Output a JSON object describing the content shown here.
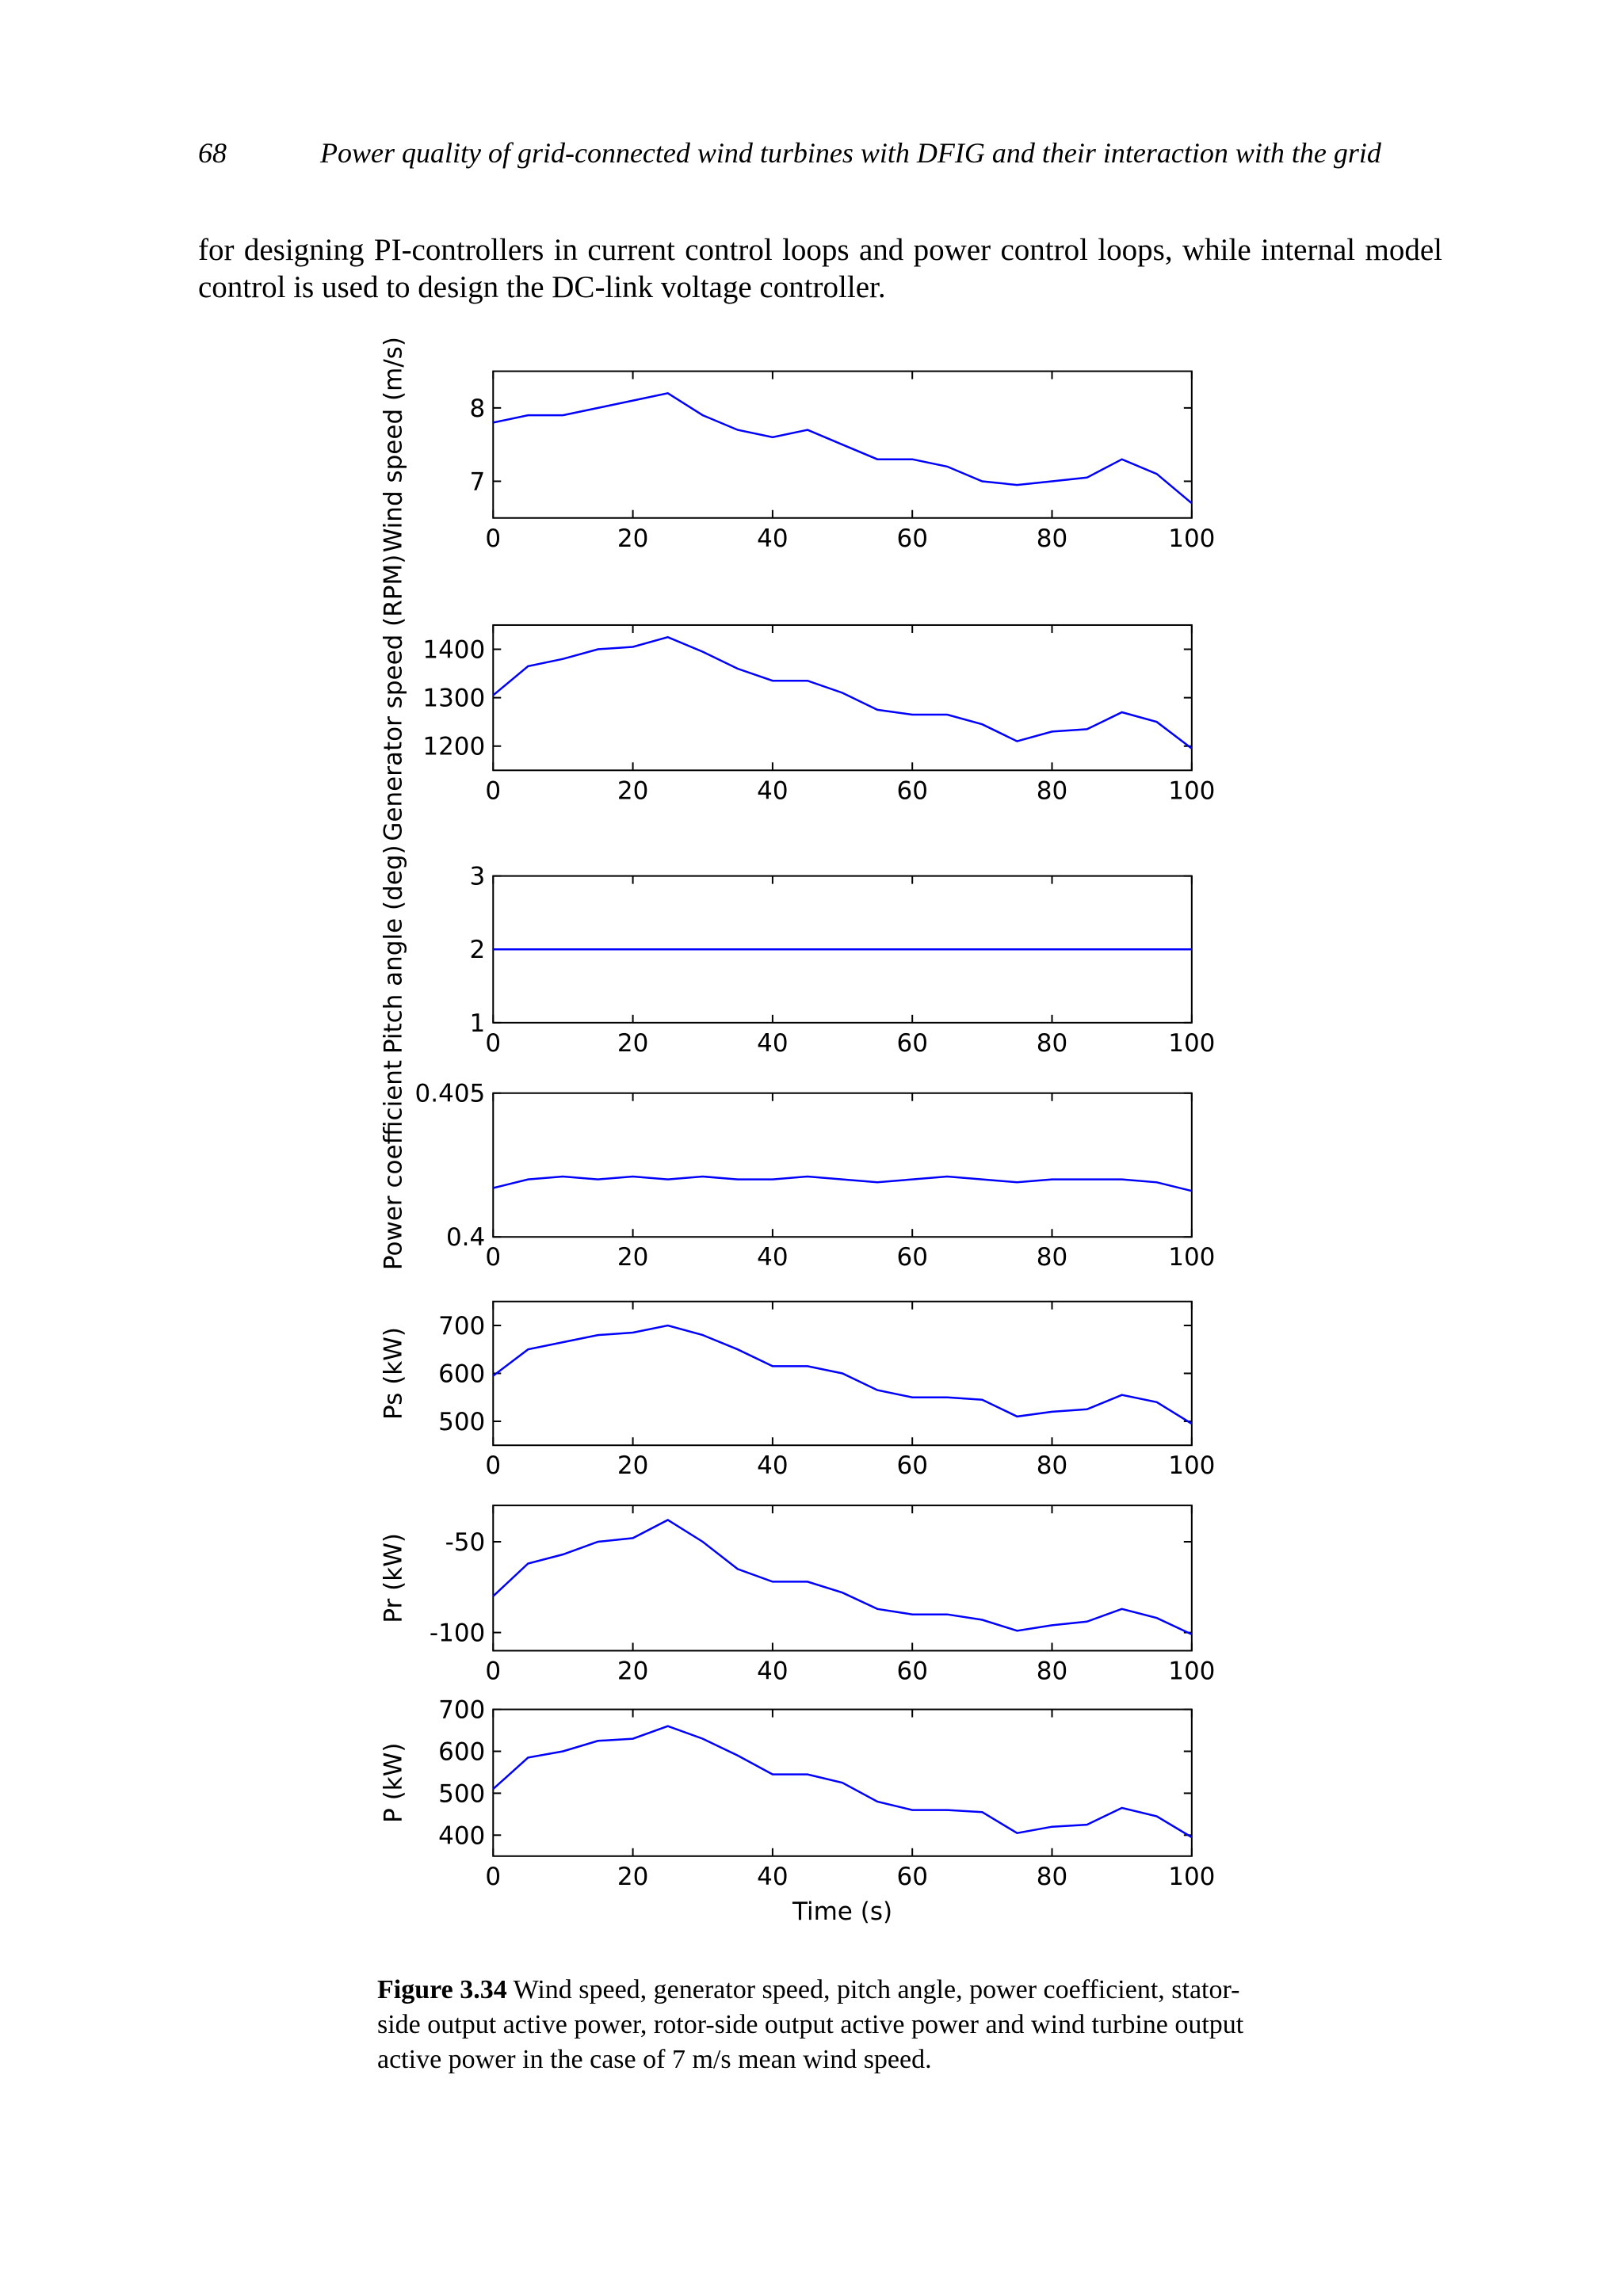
{
  "page_header": {
    "number": "68",
    "title": "Power quality of grid-connected wind turbines with DFIG and their interaction with the grid"
  },
  "body_text": "for designing PI-controllers in current control loops and power control loops, while internal model control is used to design the DC-link voltage controller.",
  "caption": {
    "label": "Figure 3.34",
    "text": "Wind speed, generator speed, pitch angle, power coefficient, stator-side output active power, rotor-side output active power and wind turbine output active power in the case of 7 m/s mean wind speed."
  },
  "chart_data": [
    {
      "type": "line",
      "ylabel": "Wind speed (m/s)",
      "color": "#0000ff",
      "x": [
        0,
        5,
        10,
        15,
        20,
        25,
        30,
        35,
        40,
        45,
        50,
        55,
        60,
        65,
        70,
        75,
        80,
        85,
        90,
        95,
        100
      ],
      "values": [
        7.8,
        7.9,
        7.9,
        8.0,
        8.1,
        8.2,
        7.9,
        7.7,
        7.6,
        7.7,
        7.5,
        7.3,
        7.3,
        7.2,
        7.0,
        6.95,
        7.0,
        7.05,
        7.3,
        7.1,
        6.7
      ],
      "xlim": [
        0,
        100
      ],
      "xticks": [
        0,
        20,
        40,
        60,
        80,
        100
      ],
      "ylim": [
        6.5,
        8.5
      ],
      "yticks": [
        7,
        8
      ]
    },
    {
      "type": "line",
      "ylabel": "Generator speed (RPM)",
      "color": "#0000ff",
      "x": [
        0,
        5,
        10,
        15,
        20,
        25,
        30,
        35,
        40,
        45,
        50,
        55,
        60,
        65,
        70,
        75,
        80,
        85,
        90,
        95,
        100
      ],
      "values": [
        1305,
        1365,
        1380,
        1400,
        1405,
        1425,
        1395,
        1360,
        1335,
        1335,
        1310,
        1275,
        1265,
        1265,
        1245,
        1210,
        1230,
        1235,
        1270,
        1250,
        1195
      ],
      "xlim": [
        0,
        100
      ],
      "xticks": [
        0,
        20,
        40,
        60,
        80,
        100
      ],
      "ylim": [
        1150,
        1450
      ],
      "yticks": [
        1200,
        1300,
        1400
      ]
    },
    {
      "type": "line",
      "ylabel": "Pitch angle (deg)",
      "color": "#0000ff",
      "x": [
        0,
        5,
        10,
        15,
        20,
        25,
        30,
        35,
        40,
        45,
        50,
        55,
        60,
        65,
        70,
        75,
        80,
        85,
        90,
        95,
        100
      ],
      "values": [
        2,
        2,
        2,
        2,
        2,
        2,
        2,
        2,
        2,
        2,
        2,
        2,
        2,
        2,
        2,
        2,
        2,
        2,
        2,
        2,
        2
      ],
      "xlim": [
        0,
        100
      ],
      "xticks": [
        0,
        20,
        40,
        60,
        80,
        100
      ],
      "ylim": [
        1,
        3
      ],
      "yticks": [
        1,
        2,
        3
      ]
    },
    {
      "type": "line",
      "ylabel": "Power coefficient",
      "color": "#0000ff",
      "x": [
        0,
        5,
        10,
        15,
        20,
        25,
        30,
        35,
        40,
        45,
        50,
        55,
        60,
        65,
        70,
        75,
        80,
        85,
        90,
        95,
        100
      ],
      "values": [
        0.4017,
        0.402,
        0.4021,
        0.402,
        0.4021,
        0.402,
        0.4021,
        0.402,
        0.402,
        0.4021,
        0.402,
        0.4019,
        0.402,
        0.4021,
        0.402,
        0.4019,
        0.402,
        0.402,
        0.402,
        0.4019,
        0.4016
      ],
      "xlim": [
        0,
        100
      ],
      "xticks": [
        0,
        20,
        40,
        60,
        80,
        100
      ],
      "ylim": [
        0.4,
        0.405
      ],
      "yticks": [
        0.4,
        0.405
      ]
    },
    {
      "type": "line",
      "ylabel": "Ps (kW)",
      "color": "#0000ff",
      "x": [
        0,
        5,
        10,
        15,
        20,
        25,
        30,
        35,
        40,
        45,
        50,
        55,
        60,
        65,
        70,
        75,
        80,
        85,
        90,
        95,
        100
      ],
      "values": [
        595,
        650,
        665,
        680,
        685,
        700,
        680,
        650,
        615,
        615,
        600,
        565,
        550,
        550,
        545,
        510,
        520,
        525,
        555,
        540,
        495
      ],
      "xlim": [
        0,
        100
      ],
      "xticks": [
        0,
        20,
        40,
        60,
        80,
        100
      ],
      "ylim": [
        450,
        750
      ],
      "yticks": [
        500,
        600,
        700
      ]
    },
    {
      "type": "line",
      "ylabel": "Pr (kW)",
      "color": "#0000ff",
      "x": [
        0,
        5,
        10,
        15,
        20,
        25,
        30,
        35,
        40,
        45,
        50,
        55,
        60,
        65,
        70,
        75,
        80,
        85,
        90,
        95,
        100
      ],
      "values": [
        -80,
        -62,
        -57,
        -50,
        -48,
        -38,
        -50,
        -65,
        -72,
        -72,
        -78,
        -87,
        -90,
        -90,
        -93,
        -99,
        -96,
        -94,
        -87,
        -92,
        -101
      ],
      "xlim": [
        0,
        100
      ],
      "xticks": [
        0,
        20,
        40,
        60,
        80,
        100
      ],
      "ylim": [
        -110,
        -30
      ],
      "yticks": [
        -100,
        -50
      ]
    },
    {
      "type": "line",
      "ylabel": "P (kW)",
      "xlabel": "Time (s)",
      "color": "#0000ff",
      "x": [
        0,
        5,
        10,
        15,
        20,
        25,
        30,
        35,
        40,
        45,
        50,
        55,
        60,
        65,
        70,
        75,
        80,
        85,
        90,
        95,
        100
      ],
      "values": [
        510,
        585,
        600,
        625,
        630,
        660,
        630,
        590,
        545,
        545,
        525,
        480,
        460,
        460,
        455,
        405,
        420,
        425,
        465,
        445,
        395
      ],
      "xlim": [
        0,
        100
      ],
      "xticks": [
        0,
        20,
        40,
        60,
        80,
        100
      ],
      "ylim": [
        350,
        700
      ],
      "yticks": [
        400,
        500,
        600,
        700
      ]
    }
  ]
}
